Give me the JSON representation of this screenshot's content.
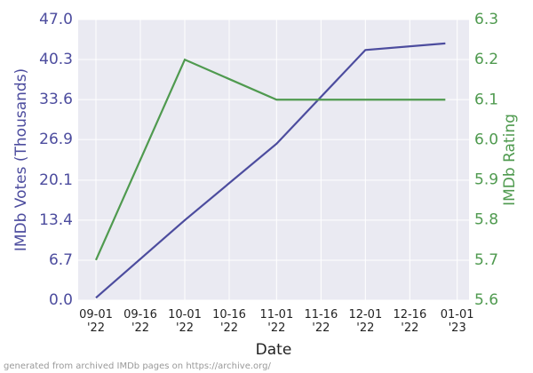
{
  "chart_data": {
    "type": "line",
    "x_label": "Date",
    "y_label": "IMDb Votes (Thousands)",
    "y2_label": "IMDb Rating",
    "footer": "generated from archived IMDb pages on https://archive.org/",
    "x": [
      "2022-09-01",
      "2022-10-01",
      "2022-11-01",
      "2022-12-01",
      "2022-12-28"
    ],
    "xlim": [
      "2022-08-26",
      "2023-01-05"
    ],
    "xticks": [
      {
        "value": "2022-09-01",
        "label": "09-01\n'22"
      },
      {
        "value": "2022-09-16",
        "label": "09-16\n'22"
      },
      {
        "value": "2022-10-01",
        "label": "10-01\n'22"
      },
      {
        "value": "2022-10-16",
        "label": "10-16\n'22"
      },
      {
        "value": "2022-11-01",
        "label": "11-01\n'22"
      },
      {
        "value": "2022-11-16",
        "label": "11-16\n'22"
      },
      {
        "value": "2022-12-01",
        "label": "12-01\n'22"
      },
      {
        "value": "2022-12-16",
        "label": "12-16\n'22"
      },
      {
        "value": "2023-01-01",
        "label": "01-01\n'23"
      }
    ],
    "ylim": [
      0,
      47
    ],
    "yticks": [
      {
        "value": 0,
        "label": "0.0"
      },
      6.7,
      13.4,
      20.1,
      26.9,
      33.6,
      40.3,
      {
        "value": 47,
        "label": "47.0"
      }
    ],
    "y2lim": [
      5.6,
      6.3
    ],
    "y2ticks": [
      5.6,
      5.7,
      5.8,
      5.9,
      {
        "value": 6,
        "label": "6.0"
      },
      6.1,
      6.2,
      6.3
    ],
    "grid": true,
    "series": [
      {
        "name": "IMDb Votes",
        "color": "#4c4c9e",
        "values": [
          0.4,
          13.4,
          26.2,
          41.9,
          43.0
        ]
      },
      {
        "name": "IMDb Rating",
        "color": "#4f9a4f",
        "axis": "y2",
        "values": [
          5.7,
          6.2,
          6.1,
          6.1,
          6.1
        ]
      }
    ]
  }
}
